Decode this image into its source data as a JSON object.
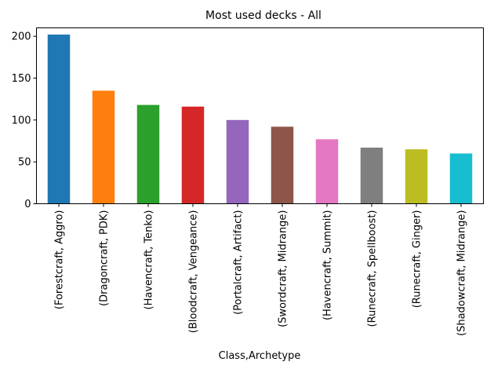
{
  "chart_data": {
    "type": "bar",
    "title": "Most used decks - All",
    "xlabel": "Class,Archetype",
    "ylabel": "",
    "ylim": [
      0,
      210
    ],
    "yticks": [
      0,
      50,
      100,
      150,
      200
    ],
    "grid": false,
    "categories": [
      "(Forestcraft, Aggro)",
      "(Dragoncraft, PDK)",
      "(Havencraft, Tenko)",
      "(Bloodcraft, Vengeance)",
      "(Portalcraft, Artifact)",
      "(Swordcraft, Midrange)",
      "(Havencraft, Summit)",
      "(Runecraft, Spellboost)",
      "(Runecraft, Ginger)",
      "(Shadowcraft, Midrange)"
    ],
    "values": [
      202,
      135,
      118,
      116,
      100,
      92,
      77,
      67,
      65,
      60
    ],
    "colors": [
      "#1f77b4",
      "#ff7f0e",
      "#2ca02c",
      "#d62728",
      "#9467bd",
      "#8c564b",
      "#e377c2",
      "#7f7f7f",
      "#bcbd22",
      "#17becf"
    ]
  }
}
